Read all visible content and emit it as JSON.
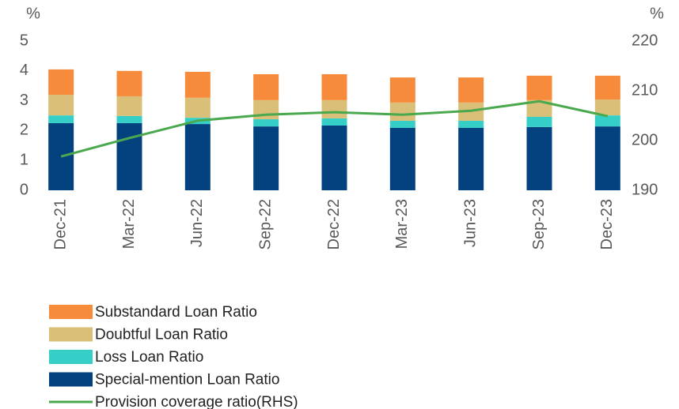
{
  "chart_data": {
    "type": "bar_line",
    "y_label": "%",
    "y2_label": "%",
    "categories": [
      "Dec-21",
      "Mar-22",
      "Jun-22",
      "Sep-22",
      "Dec-22",
      "Mar-23",
      "Jun-23",
      "Sep-23",
      "Dec-23"
    ],
    "series": [
      {
        "name": " Substandard Loan Ratio",
        "type": "bar",
        "color": "#f68b3c",
        "values": [
          0.85,
          0.85,
          0.87,
          0.87,
          0.87,
          0.84,
          0.84,
          0.82,
          0.8
        ]
      },
      {
        "name": "Doubtful Loan Ratio",
        "type": "bar",
        "color": "#d9bf78",
        "values": [
          0.69,
          0.66,
          0.67,
          0.64,
          0.61,
          0.61,
          0.61,
          0.56,
          0.53
        ]
      },
      {
        "name": "Loss Loan Ratio",
        "type": "bar",
        "color": "#35cfc8",
        "values": [
          0.26,
          0.24,
          0.21,
          0.24,
          0.24,
          0.24,
          0.24,
          0.34,
          0.37
        ]
      },
      {
        "name": "Special-mention Loan Ratio",
        "type": "bar",
        "color": "#04427f",
        "values": [
          2.25,
          2.25,
          2.22,
          2.14,
          2.17,
          2.09,
          2.09,
          2.12,
          2.14
        ]
      },
      {
        "name": "Provision coverage ratio(RHS)",
        "type": "line",
        "axis": "y2",
        "color": "#4aa84f",
        "values": [
          196.8,
          200.5,
          204.0,
          205.2,
          205.7,
          205.2,
          206.0,
          207.9,
          204.9
        ]
      }
    ],
    "ylim": [
      0,
      5
    ],
    "yticks": [
      0,
      1,
      2,
      3,
      4,
      5
    ],
    "y2lim": [
      190,
      220
    ],
    "y2ticks": [
      190,
      200,
      210,
      220
    ],
    "grid": false
  }
}
